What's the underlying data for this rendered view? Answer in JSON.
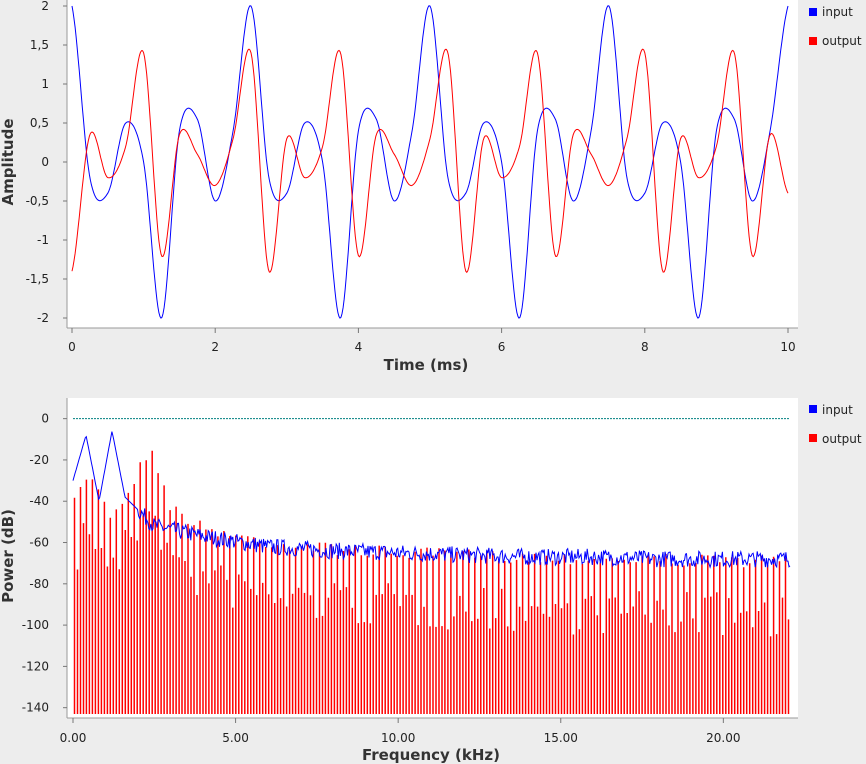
{
  "colors": {
    "input": "#0000ff",
    "output": "#ff0000",
    "reference": "#008080",
    "plot_bg": "#ffffff",
    "window_bg": "#ededed"
  },
  "chart_data": [
    {
      "type": "line",
      "xlabel": "Time (ms)",
      "ylabel": "Amplitude",
      "xlim": [
        0,
        10
      ],
      "ylim": [
        -2,
        2
      ],
      "x_ticks": [
        "0",
        "2",
        "4",
        "6",
        "8",
        "10"
      ],
      "y_ticks": [
        "2",
        "1,5",
        "1",
        "0,5",
        "0",
        "-0,5",
        "-1",
        "-1,5",
        "-2"
      ],
      "legend_position": "right",
      "x": [
        0,
        0.25,
        0.5,
        0.75,
        1,
        1.25,
        1.5,
        1.75,
        2,
        2.25,
        2.5,
        2.75,
        3,
        3.25,
        3.5,
        3.75,
        4,
        4.25,
        4.5,
        4.75,
        5,
        5.25,
        5.5,
        5.75,
        6,
        6.25,
        6.5,
        6.75,
        7,
        7.25,
        7.5,
        7.75,
        8,
        8.25,
        8.5,
        8.75,
        9,
        9.25,
        9.5,
        9.75,
        10
      ],
      "series": [
        {
          "name": "input",
          "values": [
            2,
            -0.2,
            -0.4,
            0.5,
            0,
            -2,
            0.4,
            0.55,
            -0.5,
            0.4,
            2,
            -0.2,
            -0.4,
            0.5,
            0,
            -2,
            0.4,
            0.55,
            -0.5,
            0.4,
            2,
            -0.2,
            -0.4,
            0.5,
            0,
            -2,
            0.4,
            0.55,
            -0.5,
            0.4,
            2,
            -0.2,
            -0.4,
            0.5,
            0,
            -2,
            0.4,
            0.55,
            -0.5,
            0.4,
            2
          ]
        },
        {
          "name": "output",
          "values": [
            -1.4,
            0.35,
            -0.2,
            0.2,
            1.4,
            -1.2,
            0.35,
            0.1,
            -0.3,
            0.3,
            1.4,
            -1.4,
            0.3,
            -0.2,
            0.2,
            1.4,
            -1.2,
            0.35,
            0.1,
            -0.3,
            0.3,
            1.4,
            -1.4,
            0.3,
            -0.2,
            0.2,
            1.4,
            -1.2,
            0.35,
            0.1,
            -0.3,
            0.3,
            1.4,
            -1.4,
            0.3,
            -0.2,
            0.2,
            1.4,
            -1.2,
            0.35,
            -0.4
          ]
        }
      ]
    },
    {
      "type": "line",
      "xlabel": "Frequency (kHz)",
      "ylabel": "Power (dB)",
      "xlim": [
        0,
        22.05
      ],
      "ylim": [
        -145,
        10
      ],
      "x_ticks": [
        "0.00",
        "5.00",
        "10.00",
        "15.00",
        "20.00"
      ],
      "y_ticks": [
        "0",
        "-20",
        "-40",
        "-60",
        "-80",
        "-100",
        "-120",
        "-140"
      ],
      "legend_position": "right",
      "reference_line_db": 0,
      "series": [
        {
          "name": "input",
          "x": [
            0,
            0.4,
            0.8,
            1.2,
            1.6,
            2.5,
            4,
            6,
            8,
            10,
            12,
            14,
            16,
            18,
            20,
            22
          ],
          "values": [
            -30,
            -8,
            -40,
            -6,
            -38,
            -52,
            -57,
            -62,
            -64,
            -65,
            -66,
            -67,
            -67,
            -68,
            -68,
            -68
          ]
        },
        {
          "name": "output",
          "x": [
            0,
            0.4,
            0.8,
            1.2,
            1.6,
            2.4,
            3,
            4,
            6,
            8,
            10,
            12,
            14,
            16,
            18,
            20,
            22
          ],
          "values": [
            -40,
            -25,
            -30,
            -45,
            -35,
            -10,
            -40,
            -50,
            -57,
            -60,
            -62,
            -63,
            -64,
            -65,
            -65,
            -66,
            -66
          ]
        }
      ]
    }
  ]
}
